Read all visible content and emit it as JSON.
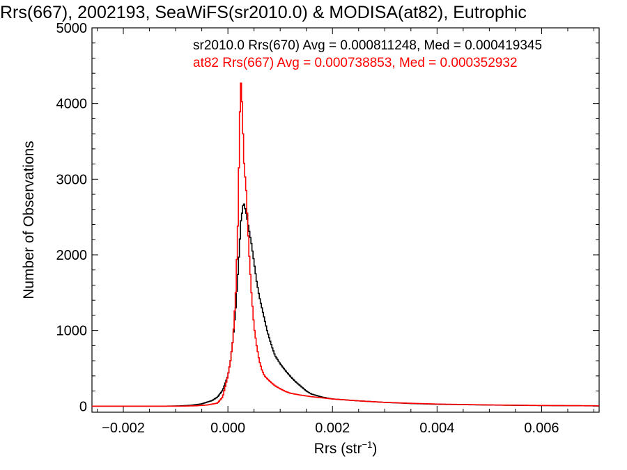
{
  "chart_data": {
    "type": "line",
    "title": "Rrs(667), 2002193, SeaWiFS(sr2010.0) & MODISA(at82), Eutrophic",
    "xlabel": "Rrs (str",
    "xlabel_sup": "−1",
    "xlabel_end": ")",
    "ylabel": "Number of Observations",
    "xlim": [
      -0.0026,
      0.0071
    ],
    "ylim": [
      -80,
      5000
    ],
    "x_ticks": [
      -0.002,
      0.0,
      0.002,
      0.004,
      0.006
    ],
    "x_tick_labels": [
      "−0.002",
      "0.000",
      "0.002",
      "0.004",
      "0.006"
    ],
    "y_ticks": [
      0,
      1000,
      2000,
      3000,
      4000,
      5000
    ],
    "y_tick_labels": [
      "0",
      "1000",
      "2000",
      "3000",
      "4000",
      "5000"
    ],
    "grid": false,
    "legend_position": "top-right",
    "series": [
      {
        "name": "sr2010.0 Rrs(670) Avg = 0.000811248, Med = 0.000419345",
        "color": "#000000",
        "points": [
          [
            -0.0026,
            0
          ],
          [
            -0.0012,
            0
          ],
          [
            -0.0009,
            4
          ],
          [
            -0.0007,
            12
          ],
          [
            -0.0005,
            30
          ],
          [
            -0.0003,
            75
          ],
          [
            -0.0002,
            120
          ],
          [
            -0.0001,
            210
          ],
          [
            0.0,
            400
          ],
          [
            5e-05,
            600
          ],
          [
            0.0001,
            900
          ],
          [
            0.00015,
            1300
          ],
          [
            0.0002,
            1850
          ],
          [
            0.00025,
            2450
          ],
          [
            0.0003,
            2700
          ],
          [
            0.00035,
            2550
          ],
          [
            0.0004,
            2350
          ],
          [
            0.00045,
            2150
          ],
          [
            0.0005,
            1900
          ],
          [
            0.00055,
            1650
          ],
          [
            0.0006,
            1450
          ],
          [
            0.00065,
            1300
          ],
          [
            0.0007,
            1150
          ],
          [
            0.00075,
            1000
          ],
          [
            0.0008,
            880
          ],
          [
            0.00085,
            770
          ],
          [
            0.0009,
            670
          ],
          [
            0.001,
            560
          ],
          [
            0.0011,
            470
          ],
          [
            0.0012,
            390
          ],
          [
            0.0013,
            320
          ],
          [
            0.0014,
            260
          ],
          [
            0.0015,
            200
          ],
          [
            0.0016,
            160
          ],
          [
            0.0018,
            120
          ],
          [
            0.002,
            95
          ],
          [
            0.0025,
            70
          ],
          [
            0.003,
            50
          ],
          [
            0.0035,
            35
          ],
          [
            0.004,
            25
          ],
          [
            0.005,
            15
          ],
          [
            0.006,
            8
          ],
          [
            0.0071,
            4
          ]
        ]
      },
      {
        "name": "at82 Rrs(667) Avg = 0.000738853, Med = 0.000352932",
        "color": "#ff0000",
        "points": [
          [
            -0.0026,
            0
          ],
          [
            -0.0009,
            0
          ],
          [
            -0.0006,
            5
          ],
          [
            -0.0004,
            15
          ],
          [
            -0.0002,
            40
          ],
          [
            -0.0001,
            120
          ],
          [
            0.0,
            400
          ],
          [
            5e-05,
            600
          ],
          [
            0.0001,
            900
          ],
          [
            0.00015,
            1500
          ],
          [
            0.0002,
            2600
          ],
          [
            0.00022,
            3700
          ],
          [
            0.00025,
            4270
          ],
          [
            0.00028,
            3900
          ],
          [
            0.0003,
            3300
          ],
          [
            0.00035,
            2850
          ],
          [
            0.0004,
            2100
          ],
          [
            0.00045,
            1500
          ],
          [
            0.0005,
            1050
          ],
          [
            0.00055,
            800
          ],
          [
            0.0006,
            600
          ],
          [
            0.00065,
            480
          ],
          [
            0.0007,
            400
          ],
          [
            0.0008,
            330
          ],
          [
            0.0009,
            270
          ],
          [
            0.001,
            230
          ],
          [
            0.0011,
            195
          ],
          [
            0.0012,
            170
          ],
          [
            0.0014,
            145
          ],
          [
            0.0016,
            125
          ],
          [
            0.0018,
            110
          ],
          [
            0.002,
            95
          ],
          [
            0.0025,
            70
          ],
          [
            0.003,
            50
          ],
          [
            0.0035,
            38
          ],
          [
            0.004,
            28
          ],
          [
            0.005,
            16
          ],
          [
            0.006,
            9
          ],
          [
            0.0071,
            5
          ]
        ]
      }
    ]
  }
}
